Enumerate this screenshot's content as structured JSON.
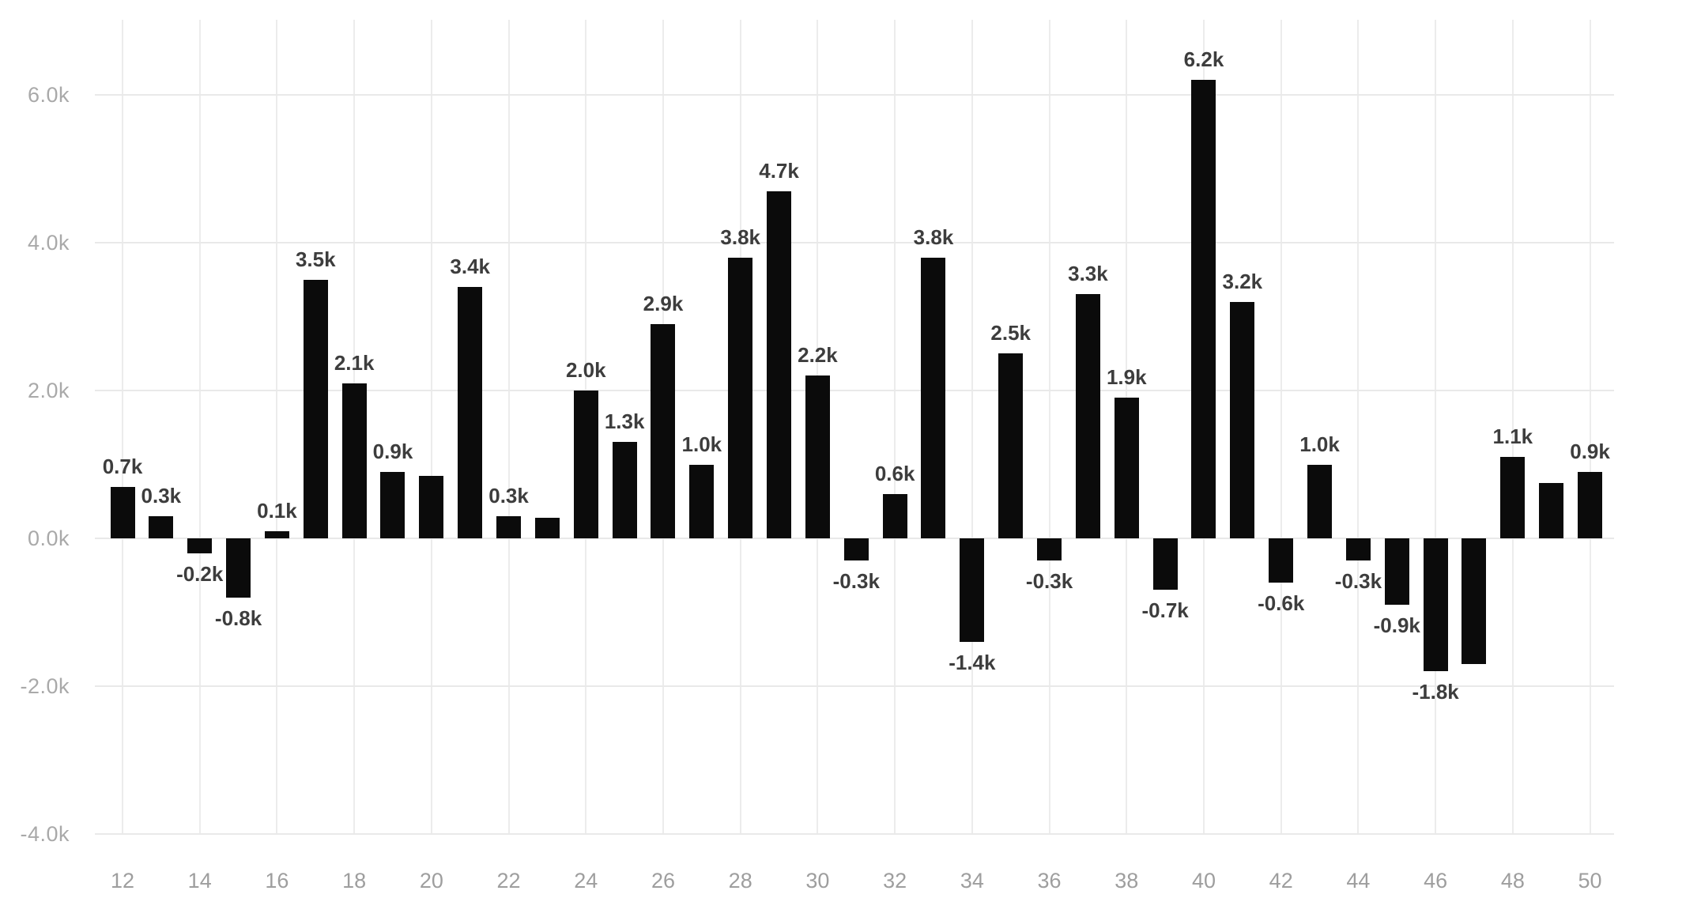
{
  "chart_data": {
    "type": "bar",
    "title": "",
    "xlabel": "",
    "ylabel": "",
    "grid": true,
    "legend": false,
    "bar_color": "#0b0b0b",
    "value_label_color": "#3d3d3d",
    "tick_label_color": "#9e9e9e",
    "gridline_color": "#e9e9e9",
    "background_color": "#ffffff",
    "ylim": [
      -4000,
      7000
    ],
    "xlim": [
      11.3,
      50.6
    ],
    "x": [
      12,
      13,
      14,
      15,
      16,
      17,
      18,
      19,
      20,
      21,
      22,
      23,
      24,
      25,
      26,
      27,
      28,
      29,
      30,
      31,
      32,
      33,
      34,
      35,
      36,
      37,
      38,
      39,
      40,
      41,
      42,
      43,
      44,
      45,
      46,
      47,
      48,
      49,
      50
    ],
    "values": [
      700,
      300,
      -200,
      -800,
      100,
      3500,
      2100,
      900,
      850,
      3400,
      300,
      280,
      2000,
      1300,
      2900,
      1000,
      3800,
      4700,
      2200,
      -300,
      600,
      3800,
      -1400,
      2500,
      -300,
      3300,
      1900,
      -700,
      6200,
      3200,
      -600,
      1000,
      -300,
      -900,
      -1800,
      -1700,
      1100,
      750,
      900
    ],
    "bar_labels": [
      "0.7k",
      "0.3k",
      "-0.2k",
      "-0.8k",
      "0.1k",
      "3.5k",
      "2.1k",
      "0.9k",
      null,
      "3.4k",
      "0.3k",
      null,
      "2.0k",
      "1.3k",
      "2.9k",
      "1.0k",
      "3.8k",
      "4.7k",
      "2.2k",
      "-0.3k",
      "0.6k",
      "3.8k",
      "-1.4k",
      "2.5k",
      "-0.3k",
      "3.3k",
      "1.9k",
      "-0.7k",
      "6.2k",
      "3.2k",
      "-0.6k",
      "1.0k",
      "-0.3k",
      "-0.9k",
      "-1.8k",
      null,
      "1.1k",
      null,
      "0.9k"
    ],
    "y_ticks": [
      {
        "value": 6000,
        "label": "6.0k"
      },
      {
        "value": 4000,
        "label": "4.0k"
      },
      {
        "value": 2000,
        "label": "2.0k"
      },
      {
        "value": 0,
        "label": "0.0k"
      },
      {
        "value": -2000,
        "label": "-2.0k"
      },
      {
        "value": -4000,
        "label": "-4.0k"
      }
    ],
    "x_ticks": [
      {
        "value": 12,
        "label": "12"
      },
      {
        "value": 14,
        "label": "14"
      },
      {
        "value": 16,
        "label": "16"
      },
      {
        "value": 18,
        "label": "18"
      },
      {
        "value": 20,
        "label": "20"
      },
      {
        "value": 22,
        "label": "22"
      },
      {
        "value": 24,
        "label": "24"
      },
      {
        "value": 26,
        "label": "26"
      },
      {
        "value": 28,
        "label": "28"
      },
      {
        "value": 30,
        "label": "30"
      },
      {
        "value": 32,
        "label": "32"
      },
      {
        "value": 34,
        "label": "34"
      },
      {
        "value": 36,
        "label": "36"
      },
      {
        "value": 38,
        "label": "38"
      },
      {
        "value": 40,
        "label": "40"
      },
      {
        "value": 42,
        "label": "42"
      },
      {
        "value": 44,
        "label": "44"
      },
      {
        "value": 46,
        "label": "46"
      },
      {
        "value": 48,
        "label": "48"
      },
      {
        "value": 50,
        "label": "50"
      }
    ]
  }
}
